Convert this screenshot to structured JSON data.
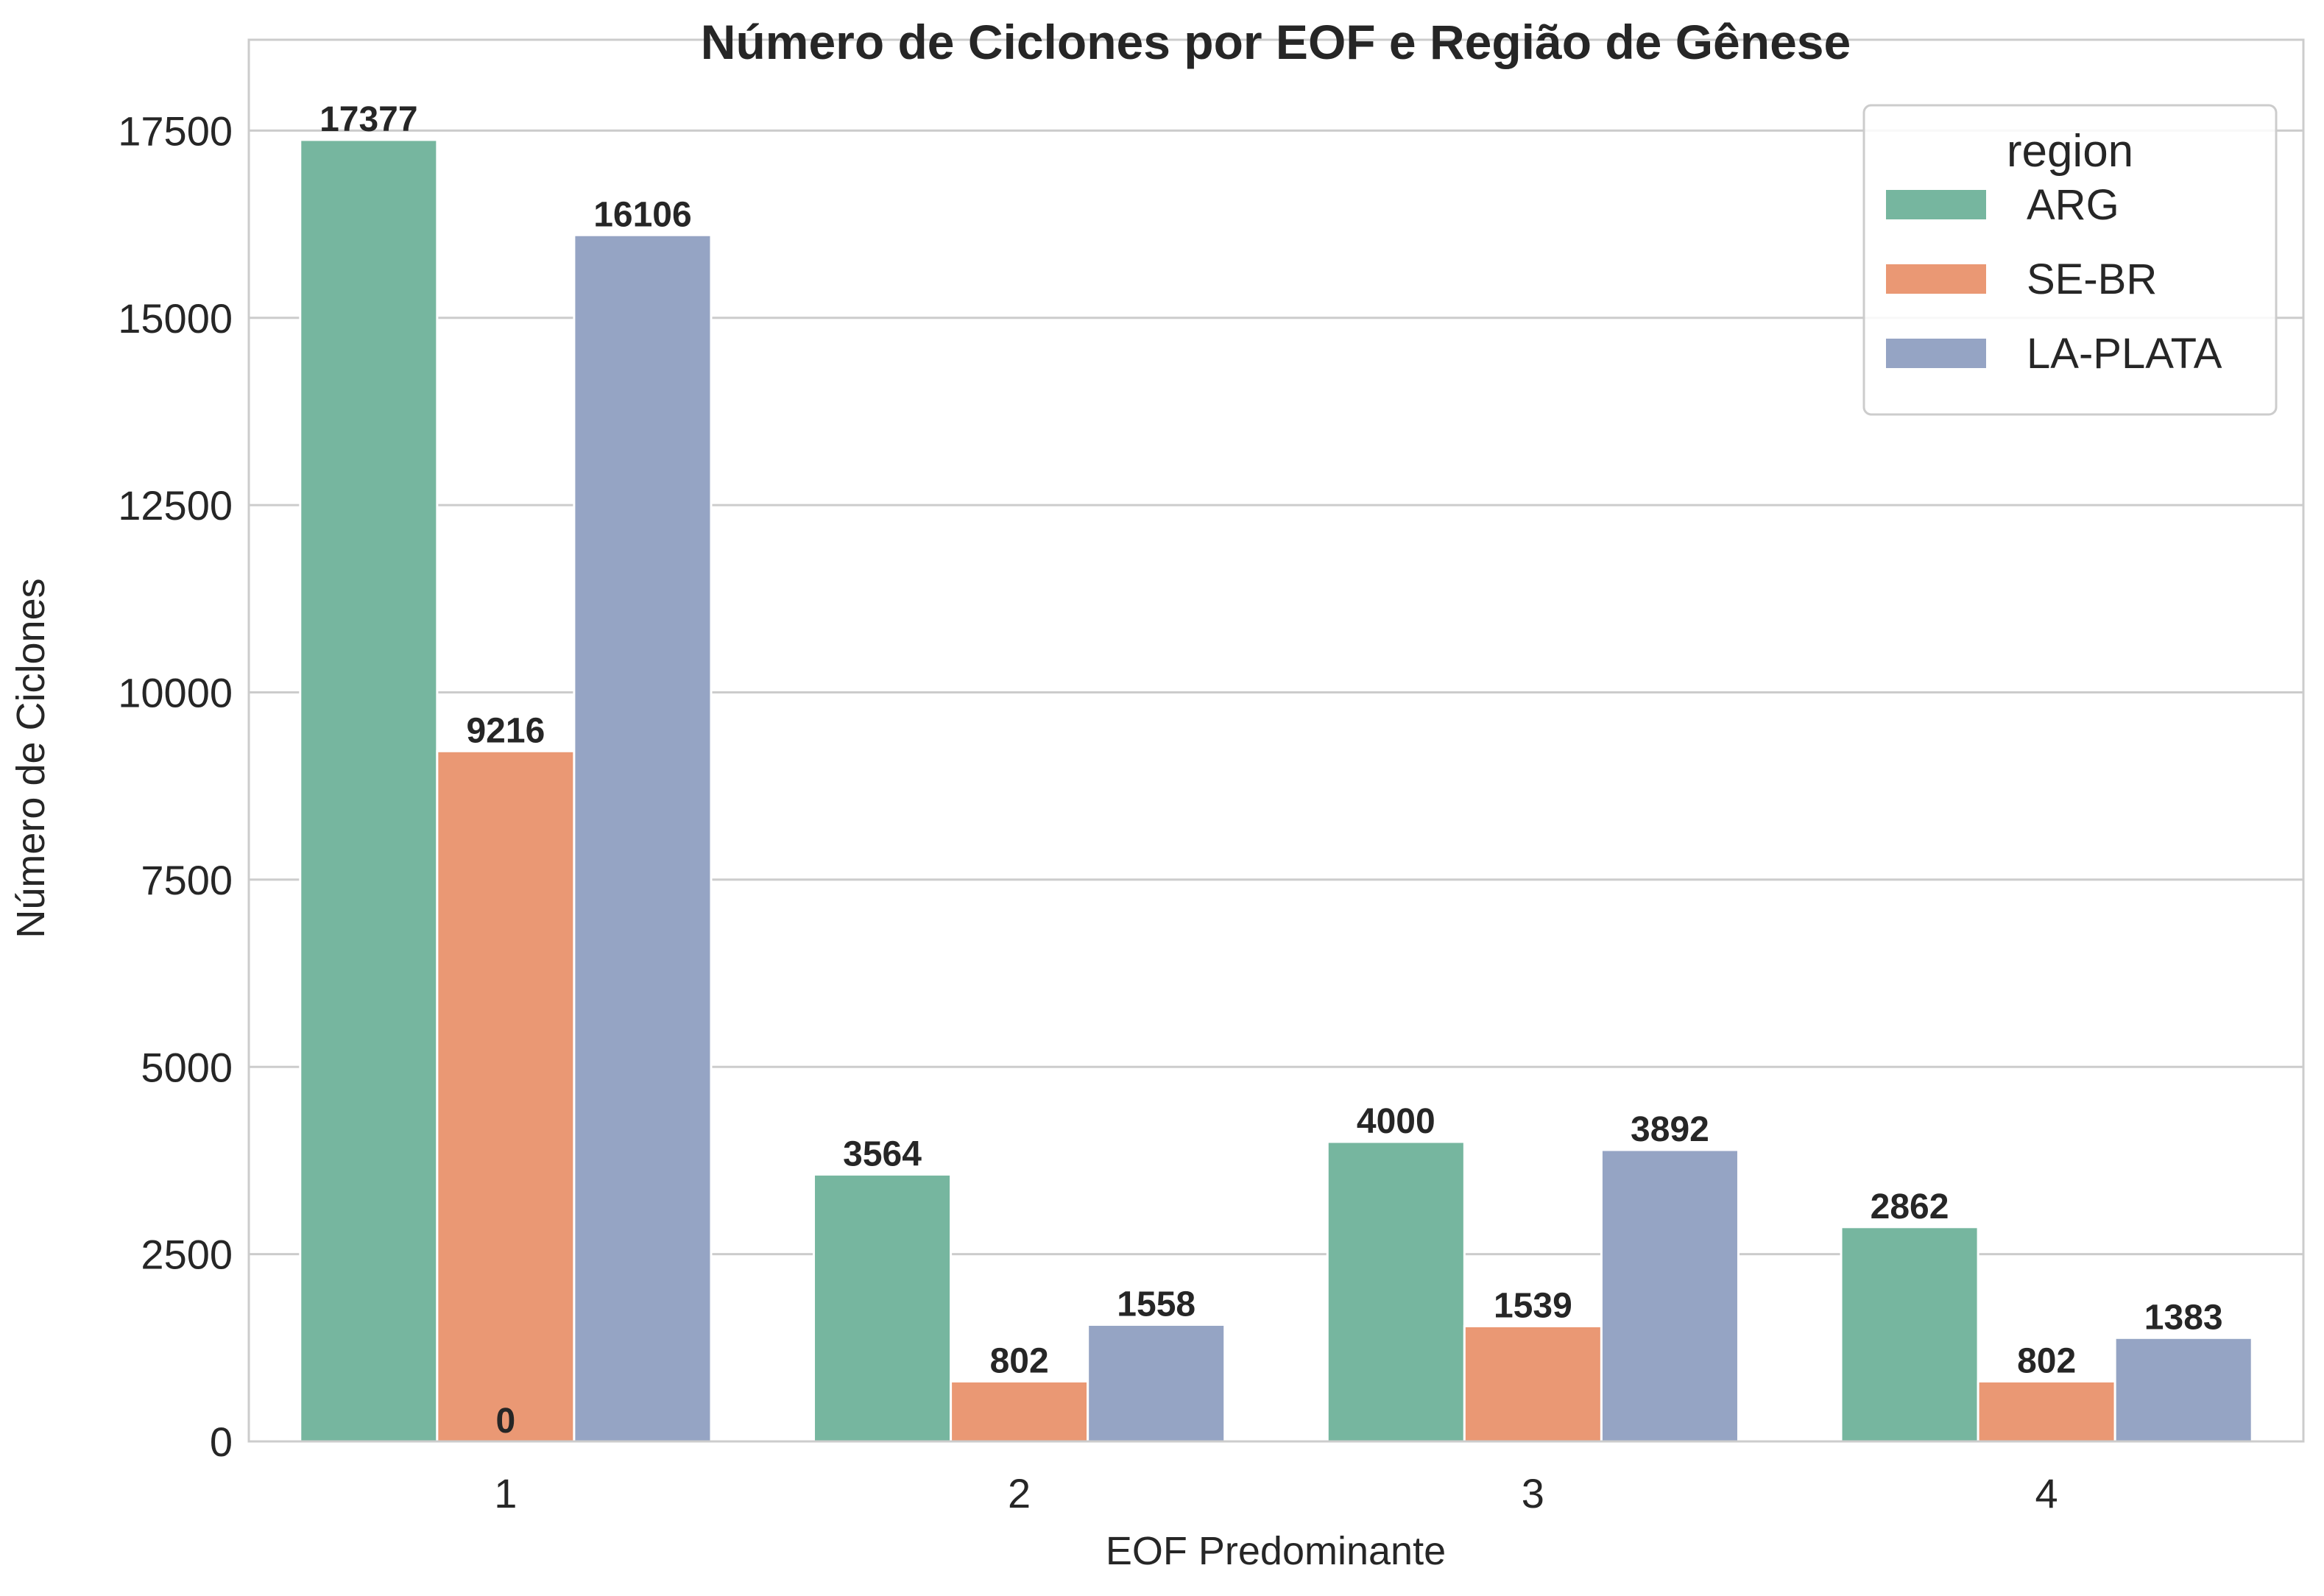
{
  "chart_data": {
    "type": "bar",
    "title": "Número de Ciclones por EOF e Região de Gênese",
    "xlabel": "EOF Predominante",
    "ylabel": "Número de Ciclones",
    "categories": [
      "1",
      "2",
      "3",
      "4"
    ],
    "series": [
      {
        "name": "ARG",
        "color": "#76b69f",
        "values": [
          17377,
          3564,
          4000,
          2862
        ]
      },
      {
        "name": "SE-BR",
        "color": "#ea9874",
        "values": [
          9216,
          802,
          1539,
          802
        ]
      },
      {
        "name": "LA-PLATA",
        "color": "#95a4c4",
        "values": [
          16106,
          1558,
          3892,
          1383
        ]
      }
    ],
    "extra_labels": [
      {
        "category": "1",
        "series": "SE-BR",
        "text": "0"
      }
    ],
    "yticks": [
      0,
      2500,
      5000,
      7500,
      10000,
      12500,
      15000,
      17500
    ],
    "ylim": [
      0,
      18713
    ],
    "grid": "horizontal",
    "legend": {
      "title": "region",
      "placement": "top-right"
    }
  }
}
